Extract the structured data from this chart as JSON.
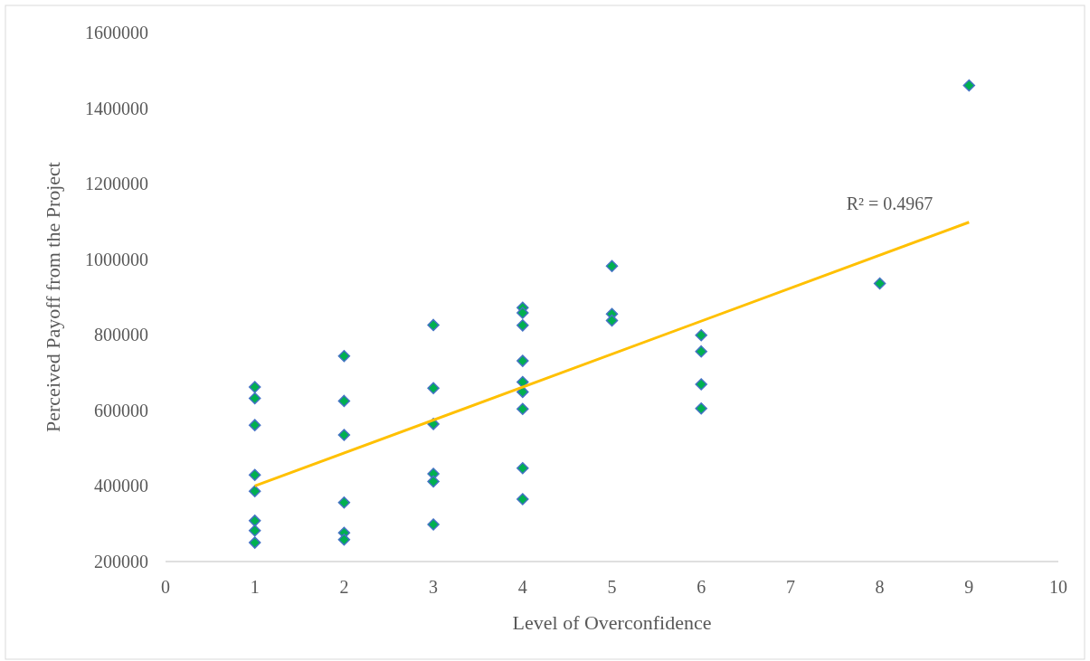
{
  "chart_data": {
    "type": "scatter",
    "xlabel": "Level of Overconfidence",
    "ylabel": "Perceived Payoff from the Project",
    "xlim": [
      0,
      10
    ],
    "xticks": [
      0,
      1,
      2,
      3,
      4,
      5,
      6,
      7,
      8,
      9,
      10
    ],
    "ylim": [
      200000,
      1600000
    ],
    "yticks": [
      200000,
      400000,
      600000,
      800000,
      1000000,
      1200000,
      1400000,
      1600000
    ],
    "grid": false,
    "marker": "diamond",
    "annotations": [
      "R² = 0.4967"
    ],
    "series": [
      {
        "color": "#00b050",
        "x": [
          1,
          1,
          1,
          1,
          1,
          1,
          1,
          1,
          2,
          2,
          2,
          2,
          2,
          2,
          3,
          3,
          3,
          3,
          3,
          3,
          4,
          4,
          4,
          4,
          4,
          4,
          4,
          4,
          4,
          5,
          5,
          5,
          6,
          6,
          6,
          6,
          8,
          9
        ],
        "values": [
          662000,
          632000,
          561000,
          429000,
          386000,
          308000,
          282000,
          250000,
          744000,
          625000,
          535000,
          356000,
          276000,
          258000,
          826000,
          659000,
          564000,
          432000,
          412000,
          298000,
          872000,
          858000,
          825000,
          731000,
          675000,
          649000,
          604000,
          447000,
          365000,
          982000,
          855000,
          838000,
          799000,
          756000,
          669000,
          605000,
          936000,
          1460000
        ]
      },
      {
        "type": "line",
        "color": "#ffc000",
        "x": [
          1,
          9
        ],
        "values": [
          400000,
          1098000
        ],
        "marker": "none"
      }
    ]
  }
}
